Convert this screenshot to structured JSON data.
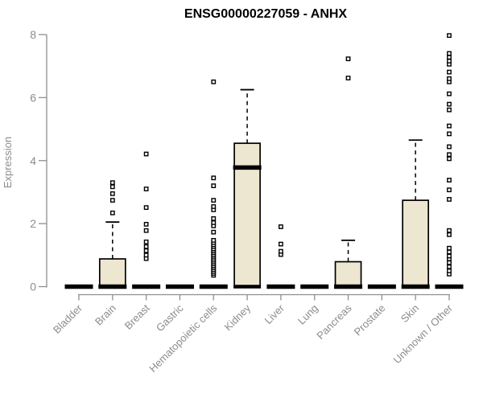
{
  "chart_data": {
    "type": "boxplot",
    "title": "ENSG00000227059 - ANHX",
    "ylabel": "Expression",
    "xlabel": "",
    "ylim": [
      0,
      8
    ],
    "yticks": [
      0,
      2,
      4,
      6,
      8
    ],
    "grid": false,
    "legend": "none",
    "categories": [
      "Bladder",
      "Brain",
      "Breast",
      "Gastric",
      "Hematopoietic cells",
      "Kidney",
      "Liver",
      "Lung",
      "Pancreas",
      "Prostate",
      "Skin",
      "Unknown / Other"
    ],
    "boxes": [
      {
        "category": "Bladder",
        "q1": 0,
        "median": 0,
        "q3": 0,
        "whisker_low": 0,
        "whisker_high": 0,
        "outliers": []
      },
      {
        "category": "Brain",
        "q1": 0,
        "median": 0,
        "q3": 0.88,
        "whisker_low": 0,
        "whisker_high": 2.05,
        "outliers": [
          2.34,
          2.74,
          2.95,
          3.17,
          3.3
        ]
      },
      {
        "category": "Breast",
        "q1": 0,
        "median": 0,
        "q3": 0,
        "whisker_low": 0,
        "whisker_high": 0,
        "outliers": [
          0.89,
          1.0,
          1.14,
          1.27,
          1.42,
          1.78,
          1.98,
          2.51,
          3.1,
          4.21
        ]
      },
      {
        "category": "Gastric",
        "q1": 0,
        "median": 0,
        "q3": 0,
        "whisker_low": 0,
        "whisker_high": 0,
        "outliers": []
      },
      {
        "category": "Hematopoietic cells",
        "q1": 0,
        "median": 0,
        "q3": 0,
        "whisker_low": 0,
        "whisker_high": 0,
        "outliers": [
          0.36,
          0.42,
          0.48,
          0.54,
          0.6,
          0.66,
          0.72,
          0.78,
          0.84,
          0.9,
          0.96,
          1.02,
          1.08,
          1.14,
          1.2,
          1.27,
          1.33,
          1.4,
          1.47,
          1.73,
          1.93,
          2.03,
          2.16,
          2.44,
          2.54,
          2.74,
          3.2,
          3.45,
          6.5
        ]
      },
      {
        "category": "Kidney",
        "q1": 0,
        "median": 3.78,
        "q3": 4.55,
        "whisker_low": 0,
        "whisker_high": 6.25,
        "outliers": []
      },
      {
        "category": "Liver",
        "q1": 0,
        "median": 0,
        "q3": 0,
        "whisker_low": 0,
        "whisker_high": 0,
        "outliers": [
          1.02,
          1.12,
          1.35,
          1.9
        ]
      },
      {
        "category": "Lung",
        "q1": 0,
        "median": 0,
        "q3": 0,
        "whisker_low": 0,
        "whisker_high": 0,
        "outliers": []
      },
      {
        "category": "Pancreas",
        "q1": 0,
        "median": 0,
        "q3": 0.79,
        "whisker_low": 0,
        "whisker_high": 1.47,
        "outliers": [
          6.62,
          7.23
        ]
      },
      {
        "category": "Prostate",
        "q1": 0,
        "median": 0,
        "q3": 0,
        "whisker_low": 0,
        "whisker_high": 0,
        "outliers": []
      },
      {
        "category": "Skin",
        "q1": 0,
        "median": 0,
        "q3": 2.74,
        "whisker_low": 0,
        "whisker_high": 4.65,
        "outliers": []
      },
      {
        "category": "Unknown / Other",
        "q1": 0,
        "median": 0,
        "q3": 0,
        "whisker_low": 0,
        "whisker_high": 0,
        "outliers": [
          0.4,
          0.5,
          0.63,
          0.76,
          0.88,
          0.97,
          1.1,
          1.22,
          1.65,
          1.78,
          2.77,
          3.07,
          3.38,
          4.06,
          4.19,
          4.44,
          4.85,
          5.1,
          5.61,
          5.79,
          6.12,
          6.5,
          6.6,
          6.81,
          7.06,
          7.16,
          7.28,
          7.4,
          7.97
        ]
      }
    ],
    "colors": {
      "box_fill": "#ede7d1",
      "box_border": "#000000",
      "median": "#000000",
      "whisker": "#000000",
      "outlier_stroke": "#000000",
      "outlier_fill": "#ffffff",
      "axis": "#8f8f8f",
      "tick_label": "#8c8c8c",
      "title": "#000000",
      "background": "#ffffff"
    }
  }
}
